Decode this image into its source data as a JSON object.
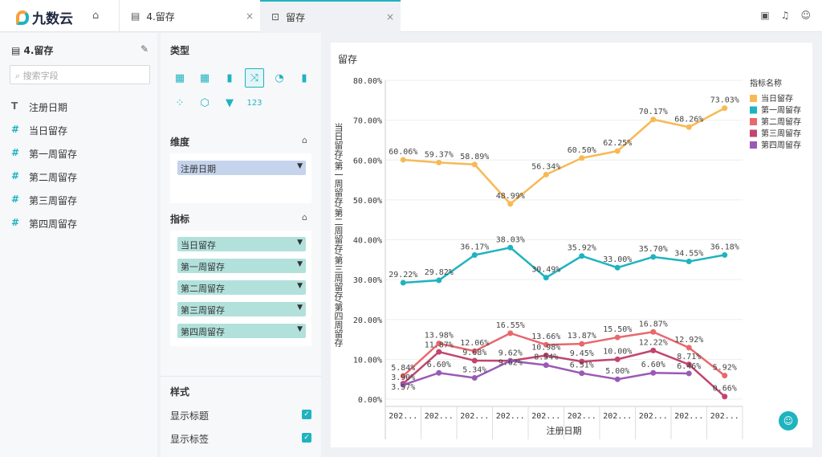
{
  "header": {
    "logo": "九数云",
    "tabs": [
      {
        "label": "4.留存",
        "close": "×"
      },
      {
        "label": "留存",
        "close": "×"
      }
    ]
  },
  "left": {
    "title": "4.留存",
    "search_placeholder": "搜索字段",
    "fields": [
      {
        "type": "T",
        "label": "注册日期"
      },
      {
        "type": "#",
        "label": "当日留存"
      },
      {
        "type": "#",
        "label": "第一周留存"
      },
      {
        "type": "#",
        "label": "第二周留存"
      },
      {
        "type": "#",
        "label": "第三周留存"
      },
      {
        "type": "#",
        "label": "第四周留存"
      }
    ]
  },
  "config": {
    "type_label": "类型",
    "dimension_label": "维度",
    "dimensions": [
      "注册日期"
    ],
    "metric_label": "指标",
    "metrics": [
      "当日留存",
      "第一周留存",
      "第二周留存",
      "第三周留存",
      "第四周留存"
    ],
    "style_label": "样式",
    "options": [
      {
        "label": "显示标题",
        "checked": true
      },
      {
        "label": "显示标签",
        "checked": true
      }
    ]
  },
  "chart_data": {
    "type": "line",
    "title": "留存",
    "xlabel": "注册日期",
    "ylabel": "当日留存/第一周留存/第二周留存/第三周留存/第四周留存",
    "categories": [
      "202...",
      "202...",
      "202...",
      "202...",
      "202...",
      "202...",
      "202...",
      "202...",
      "202...",
      "202..."
    ],
    "yticks": [
      "0.00%",
      "10.00%",
      "20.00%",
      "30.00%",
      "40.00%",
      "50.00%",
      "60.00%",
      "70.00%",
      "80.00%"
    ],
    "ylim": [
      0,
      80
    ],
    "grid": true,
    "legend_title": "指标名称",
    "legend_position": "right",
    "series": [
      {
        "name": "当日留存",
        "color": "#f7b955",
        "values": [
          60.06,
          59.37,
          58.89,
          48.99,
          56.34,
          60.5,
          62.25,
          70.17,
          68.26,
          73.03
        ]
      },
      {
        "name": "第一周留存",
        "color": "#1fb3c0",
        "values": [
          29.22,
          29.82,
          36.17,
          38.03,
          30.49,
          35.92,
          33.0,
          35.7,
          34.55,
          36.18
        ]
      },
      {
        "name": "第二周留存",
        "color": "#e8686e",
        "values": [
          5.84,
          13.98,
          12.06,
          16.55,
          13.66,
          13.87,
          15.5,
          16.87,
          12.92,
          5.92
        ]
      },
      {
        "name": "第三周留存",
        "color": "#c2456e",
        "values": [
          3.9,
          11.87,
          9.68,
          9.62,
          10.98,
          9.45,
          10.0,
          12.22,
          8.71,
          0.66
        ]
      },
      {
        "name": "第四周留存",
        "color": "#9b59b6",
        "values": [
          3.57,
          6.6,
          5.34,
          9.62,
          8.54,
          6.51,
          5.0,
          6.6,
          6.46,
          null
        ]
      }
    ]
  }
}
